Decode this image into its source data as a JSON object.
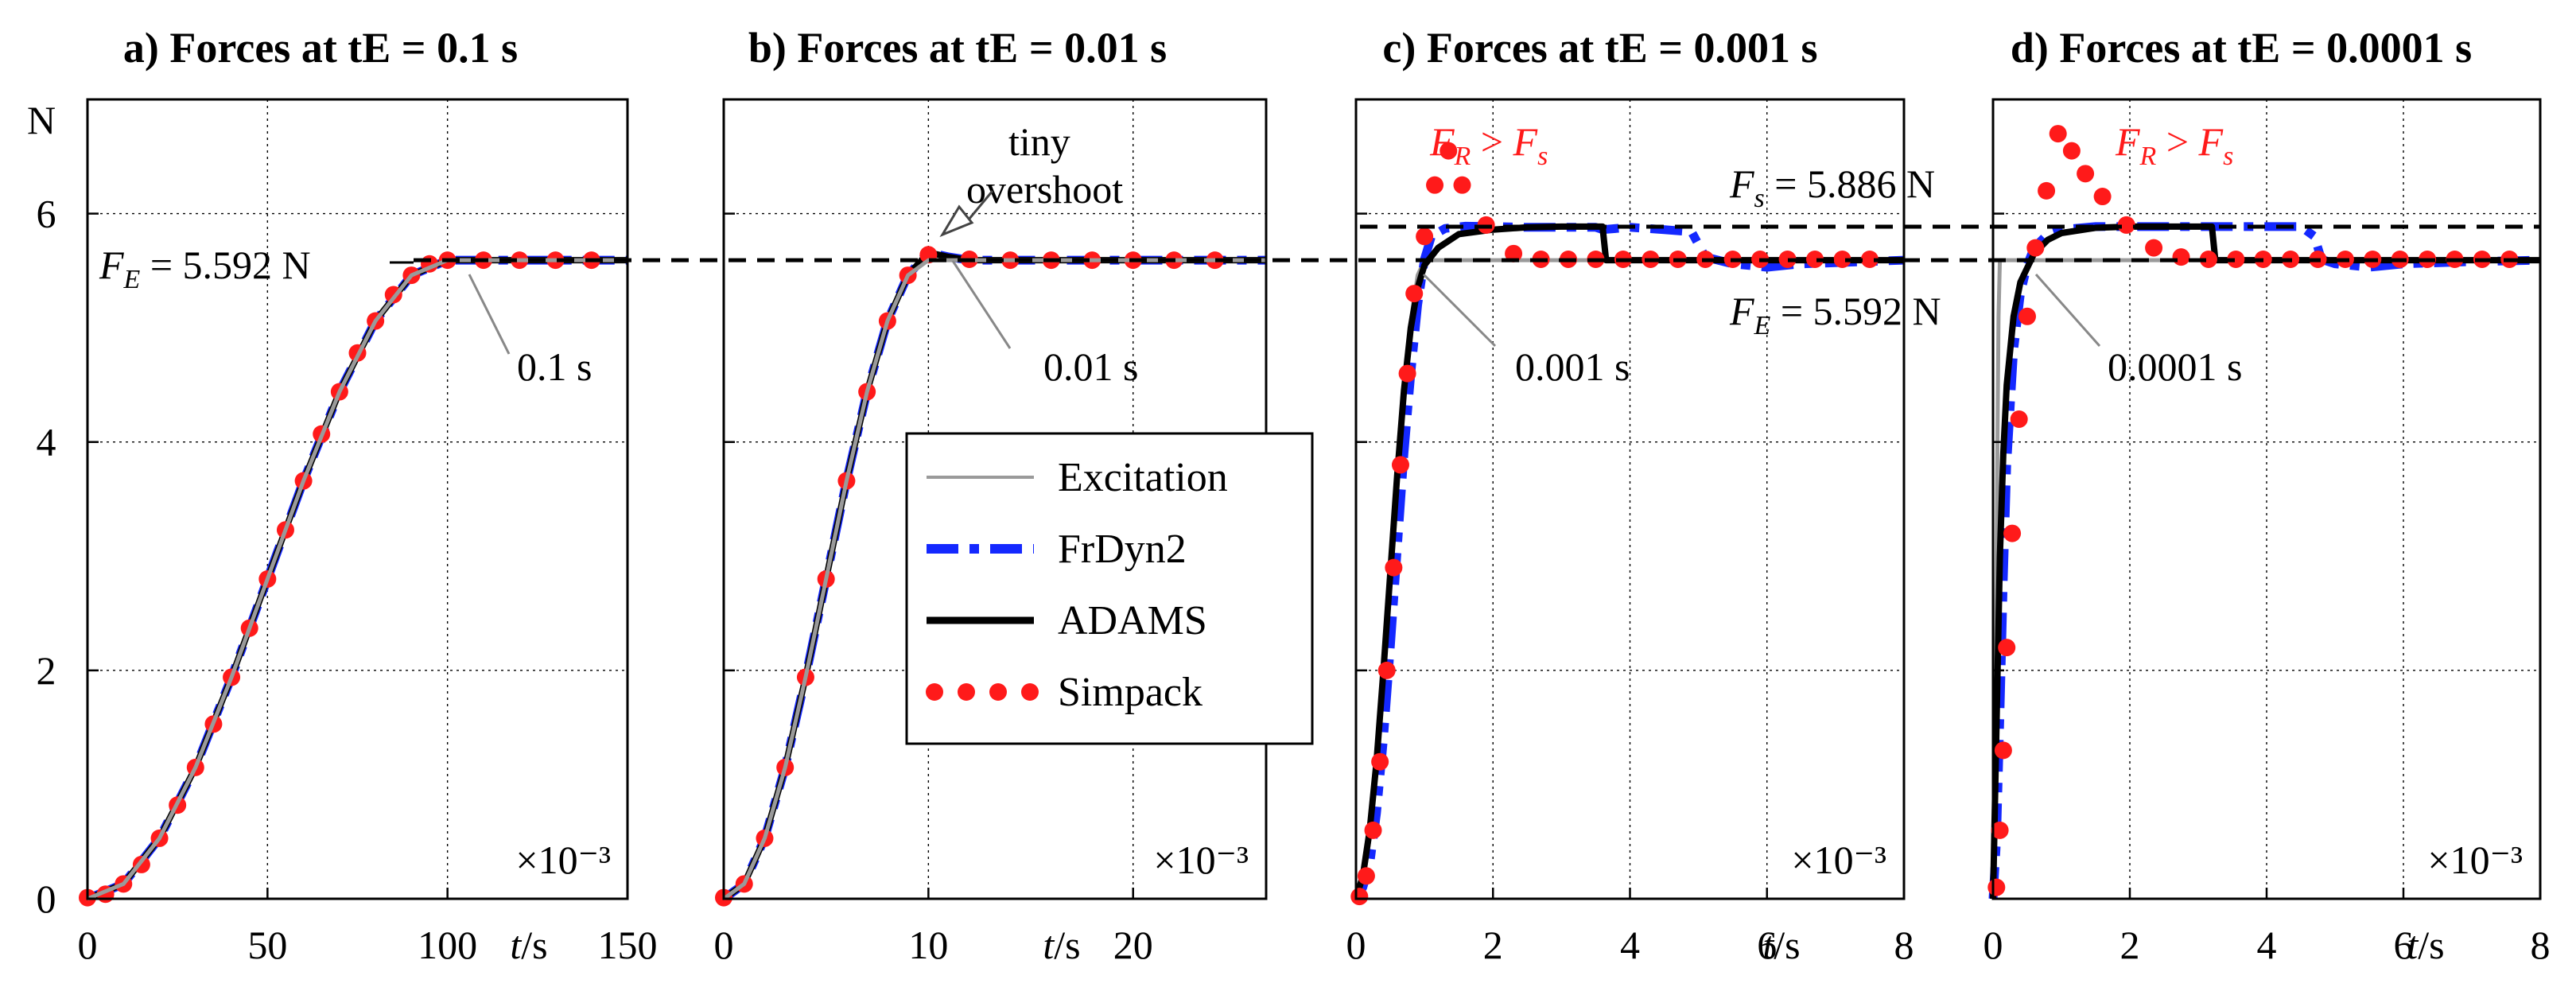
{
  "colors": {
    "excitation": "#9a9a9a",
    "frdyn2": "#1428ff",
    "adams": "#000000",
    "simpack": "#ff1a1a",
    "reference": "#000000"
  },
  "y_unit": "N",
  "exponent_label": "×10⁻³",
  "legend": {
    "placement": "center, overlapping panels b and c",
    "entries": [
      {
        "key": "excitation",
        "label": "Excitation"
      },
      {
        "key": "frdyn2",
        "label": "FrDyn2"
      },
      {
        "key": "adams",
        "label": "ADAMS"
      },
      {
        "key": "simpack",
        "label": "Simpack"
      }
    ]
  },
  "annotations": {
    "fe_left": "F_E = 5.592 N",
    "fs_right": "F_s = 5.886 N",
    "fe_right": "F_E = 5.592 N",
    "tiny_1": "tiny",
    "tiny_2": "overshoot",
    "fr_c": "F_R > F_s",
    "fr_d": "F_R > F_s"
  },
  "chart_data": [
    {
      "type": "line",
      "title": "a) Forces at tE = 0.1 s",
      "xlabel": "t/s",
      "ylabel": "N",
      "xlim": [
        0,
        150
      ],
      "ylim": [
        0,
        7
      ],
      "xticks": [
        0,
        50,
        100,
        150
      ],
      "yticks": [
        0,
        2,
        4,
        6
      ],
      "exponent": "×10⁻³",
      "tE_label": "0.1 s",
      "ramp_end": 100,
      "series": [
        {
          "name": "Excitation",
          "x": [
            0,
            10,
            20,
            30,
            40,
            50,
            60,
            70,
            80,
            90,
            100,
            150
          ],
          "y": [
            0,
            0.13,
            0.53,
            1.15,
            1.94,
            2.8,
            3.66,
            4.44,
            5.06,
            5.46,
            5.592,
            5.592
          ]
        },
        {
          "name": "FrDyn2",
          "x": [
            0,
            10,
            20,
            30,
            40,
            50,
            60,
            70,
            80,
            90,
            100,
            150
          ],
          "y": [
            0,
            0.13,
            0.53,
            1.15,
            1.94,
            2.8,
            3.66,
            4.44,
            5.06,
            5.46,
            5.592,
            5.592
          ]
        },
        {
          "name": "ADAMS",
          "x": [
            0,
            10,
            20,
            30,
            40,
            50,
            60,
            70,
            80,
            90,
            100,
            150
          ],
          "y": [
            0,
            0.13,
            0.53,
            1.15,
            1.94,
            2.8,
            3.66,
            4.44,
            5.06,
            5.46,
            5.592,
            5.592
          ]
        },
        {
          "name": "Simpack",
          "x": [
            0,
            5,
            10,
            15,
            20,
            25,
            30,
            35,
            40,
            45,
            50,
            55,
            60,
            65,
            70,
            75,
            80,
            85,
            90,
            95,
            100,
            110,
            120,
            130,
            140
          ],
          "y": [
            0.01,
            0.04,
            0.13,
            0.3,
            0.53,
            0.82,
            1.15,
            1.53,
            1.94,
            2.37,
            2.8,
            3.23,
            3.66,
            4.07,
            4.44,
            4.78,
            5.06,
            5.29,
            5.46,
            5.56,
            5.592,
            5.592,
            5.592,
            5.592,
            5.592
          ]
        }
      ]
    },
    {
      "type": "line",
      "title": "b) Forces at tE = 0.01 s",
      "xlabel": "t/s",
      "ylabel": "N",
      "xlim": [
        0,
        26.5
      ],
      "ylim": [
        0,
        7
      ],
      "xticks": [
        0,
        10,
        20
      ],
      "yticks": [
        0,
        2,
        4,
        6
      ],
      "exponent": "×10⁻³",
      "tE_label": "0.01 s",
      "ramp_end": 10,
      "series": [
        {
          "name": "Excitation",
          "x": [
            0,
            1,
            2,
            3,
            4,
            5,
            6,
            7,
            8,
            9,
            10,
            26.5
          ],
          "y": [
            0,
            0.13,
            0.53,
            1.15,
            1.94,
            2.8,
            3.66,
            4.44,
            5.06,
            5.46,
            5.592,
            5.592
          ]
        },
        {
          "name": "FrDyn2",
          "x": [
            0,
            1,
            2,
            3,
            4,
            5,
            6,
            7,
            8,
            9,
            10,
            11,
            12,
            26.5
          ],
          "y": [
            0,
            0.13,
            0.53,
            1.15,
            1.94,
            2.8,
            3.66,
            4.44,
            5.06,
            5.46,
            5.66,
            5.62,
            5.592,
            5.592
          ]
        },
        {
          "name": "ADAMS",
          "x": [
            0,
            1,
            2,
            3,
            4,
            5,
            6,
            7,
            8,
            9,
            10,
            11,
            12,
            26.5
          ],
          "y": [
            0,
            0.13,
            0.53,
            1.15,
            1.94,
            2.8,
            3.66,
            4.44,
            5.06,
            5.46,
            5.66,
            5.62,
            5.592,
            5.592
          ]
        },
        {
          "name": "Simpack",
          "x": [
            0,
            1,
            2,
            3,
            4,
            5,
            6,
            7,
            8,
            9,
            10,
            12,
            14,
            16,
            18,
            20,
            22,
            24
          ],
          "y": [
            0.01,
            0.13,
            0.53,
            1.15,
            1.94,
            2.8,
            3.66,
            4.44,
            5.06,
            5.46,
            5.64,
            5.6,
            5.592,
            5.592,
            5.592,
            5.592,
            5.592,
            5.592
          ]
        }
      ]
    },
    {
      "type": "line",
      "title": "c) Forces at tE = 0.001 s",
      "xlabel": "t/s",
      "ylabel": "N",
      "xlim": [
        0,
        8
      ],
      "ylim": [
        0,
        7
      ],
      "xticks": [
        0,
        2,
        4,
        6,
        8
      ],
      "yticks": [
        0,
        2,
        4,
        6
      ],
      "exponent": "×10⁻³",
      "tE_label": "0.001 s",
      "ramp_end": 1,
      "series": [
        {
          "name": "Excitation",
          "x": [
            0,
            0.1,
            0.2,
            0.3,
            0.4,
            0.5,
            0.6,
            0.7,
            0.8,
            0.9,
            1,
            8
          ],
          "y": [
            0,
            0.13,
            0.53,
            1.15,
            1.94,
            2.8,
            3.66,
            4.44,
            5.06,
            5.46,
            5.592,
            5.592
          ]
        },
        {
          "name": "FrDyn2",
          "x": [
            0,
            0.1,
            0.2,
            0.3,
            0.4,
            0.5,
            0.6,
            0.7,
            0.8,
            0.9,
            1,
            1.1,
            1.3,
            1.6,
            2,
            2.5,
            3,
            3.5,
            3.6,
            4,
            4.5,
            4.9,
            5.1,
            5.5,
            6,
            6.5,
            7,
            8
          ],
          "y": [
            0,
            0.1,
            0.3,
            0.75,
            1.4,
            2.2,
            3.05,
            3.9,
            4.6,
            5.2,
            5.6,
            5.8,
            5.87,
            5.89,
            5.886,
            5.88,
            5.88,
            5.88,
            5.86,
            5.88,
            5.86,
            5.84,
            5.62,
            5.56,
            5.53,
            5.56,
            5.57,
            5.592
          ]
        },
        {
          "name": "ADAMS",
          "x": [
            0,
            0.1,
            0.2,
            0.3,
            0.4,
            0.5,
            0.6,
            0.7,
            0.8,
            0.9,
            1,
            1.2,
            1.5,
            2,
            2.5,
            3,
            3.5,
            3.6,
            3.65,
            4,
            5,
            6,
            7,
            8
          ],
          "y": [
            0,
            0.2,
            0.6,
            1.2,
            2,
            2.85,
            3.7,
            4.45,
            5.0,
            5.35,
            5.55,
            5.7,
            5.82,
            5.86,
            5.88,
            5.886,
            5.886,
            5.886,
            5.592,
            5.592,
            5.592,
            5.592,
            5.592,
            5.592
          ]
        },
        {
          "name": "Simpack",
          "x": [
            0.05,
            0.15,
            0.25,
            0.35,
            0.45,
            0.55,
            0.65,
            0.75,
            0.85,
            1.0,
            1.15,
            1.35,
            1.55,
            1.9,
            2.3,
            2.7,
            3.1,
            3.5,
            3.9,
            4.3,
            4.7,
            5.1,
            5.5,
            5.9,
            6.3,
            6.7,
            7.1,
            7.5
          ],
          "y": [
            0.02,
            0.2,
            0.6,
            1.2,
            2,
            2.9,
            3.8,
            4.6,
            5.3,
            5.8,
            6.25,
            6.55,
            6.25,
            5.9,
            5.65,
            5.6,
            5.6,
            5.6,
            5.6,
            5.6,
            5.6,
            5.6,
            5.6,
            5.6,
            5.6,
            5.6,
            5.6,
            5.6
          ]
        }
      ]
    },
    {
      "type": "line",
      "title": "d) Forces at tE = 0.0001 s",
      "xlabel": "t/s",
      "ylabel": "N",
      "xlim": [
        0,
        8
      ],
      "ylim": [
        0,
        7
      ],
      "xticks": [
        0,
        2,
        4,
        6,
        8
      ],
      "yticks": [
        0,
        2,
        4,
        6
      ],
      "exponent": "×10⁻³",
      "tE_label": "0.0001 s",
      "ramp_end": 0.1,
      "series": [
        {
          "name": "Excitation",
          "x": [
            0,
            0.02,
            0.04,
            0.06,
            0.08,
            0.1,
            8
          ],
          "y": [
            0,
            0.5,
            1.9,
            3.7,
            5.1,
            5.592,
            5.592
          ]
        },
        {
          "name": "FrDyn2",
          "x": [
            0,
            0.05,
            0.1,
            0.15,
            0.2,
            0.3,
            0.4,
            0.5,
            0.6,
            0.8,
            1,
            1.5,
            2,
            3,
            4,
            4.5,
            4.7,
            4.8,
            5,
            5.5,
            6,
            7,
            8
          ],
          "y": [
            0,
            0.5,
            1.6,
            2.8,
            3.8,
            4.8,
            5.3,
            5.55,
            5.7,
            5.82,
            5.86,
            5.886,
            5.886,
            5.886,
            5.886,
            5.886,
            5.8,
            5.6,
            5.56,
            5.53,
            5.56,
            5.58,
            5.592
          ]
        },
        {
          "name": "ADAMS",
          "x": [
            0,
            0.05,
            0.1,
            0.15,
            0.2,
            0.3,
            0.4,
            0.6,
            0.8,
            1,
            1.5,
            2,
            3,
            3.2,
            3.25,
            4,
            5,
            6,
            7,
            8
          ],
          "y": [
            0,
            1.5,
            3,
            3.9,
            4.5,
            5.1,
            5.4,
            5.65,
            5.77,
            5.83,
            5.876,
            5.886,
            5.886,
            5.886,
            5.592,
            5.592,
            5.592,
            5.592,
            5.592,
            5.592
          ]
        },
        {
          "name": "Simpack",
          "x": [
            0.05,
            0.1,
            0.15,
            0.2,
            0.28,
            0.38,
            0.5,
            0.62,
            0.78,
            0.95,
            1.15,
            1.35,
            1.6,
            1.95,
            2.35,
            2.75,
            3.15,
            3.55,
            3.95,
            4.35,
            4.75,
            5.15,
            5.55,
            5.95,
            6.35,
            6.75,
            7.15,
            7.55
          ],
          "y": [
            0.1,
            0.6,
            1.3,
            2.2,
            3.2,
            4.2,
            5.1,
            5.7,
            6.2,
            6.7,
            6.55,
            6.35,
            6.15,
            5.9,
            5.7,
            5.62,
            5.6,
            5.6,
            5.6,
            5.6,
            5.6,
            5.6,
            5.6,
            5.6,
            5.6,
            5.6,
            5.6,
            5.6
          ]
        }
      ]
    }
  ]
}
